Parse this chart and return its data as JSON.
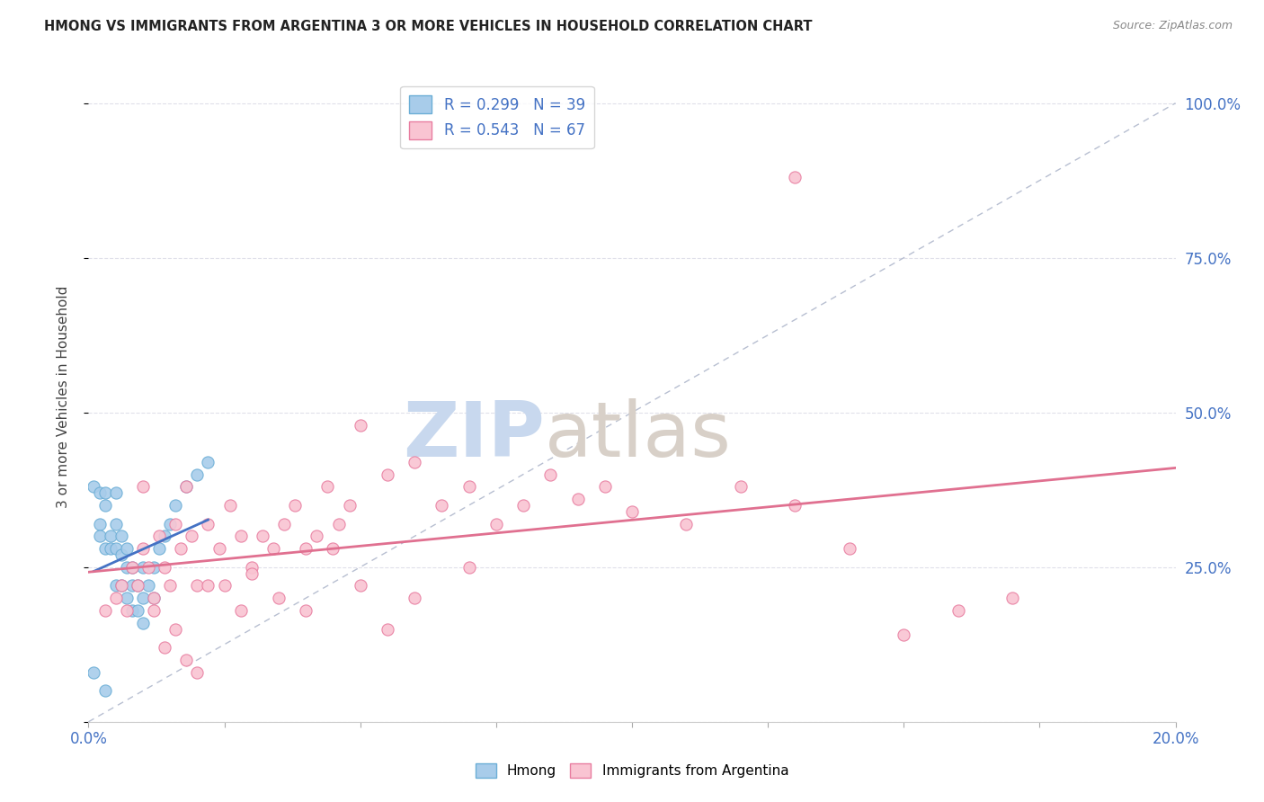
{
  "title": "HMONG VS IMMIGRANTS FROM ARGENTINA 3 OR MORE VEHICLES IN HOUSEHOLD CORRELATION CHART",
  "source": "Source: ZipAtlas.com",
  "ylabel": "3 or more Vehicles in Household",
  "xmin": 0.0,
  "xmax": 0.2,
  "ymin": 0.0,
  "ymax": 1.05,
  "right_yticks": [
    0.25,
    0.5,
    0.75,
    1.0
  ],
  "right_yticklabels": [
    "25.0%",
    "50.0%",
    "75.0%",
    "100.0%"
  ],
  "xticks": [
    0.0,
    0.025,
    0.05,
    0.075,
    0.1,
    0.125,
    0.15,
    0.175,
    0.2
  ],
  "xticklabels": [
    "0.0%",
    "",
    "",
    "",
    "",
    "",
    "",
    "",
    "20.0%"
  ],
  "hmong_color": "#A8CCEA",
  "hmong_edge_color": "#6BAED6",
  "argentina_color": "#F9C4D2",
  "argentina_edge_color": "#E87DA0",
  "trend_hmong_color": "#4472C4",
  "trend_argentina_color": "#E07090",
  "diagonal_color": "#B0B8CC",
  "R_hmong": 0.299,
  "N_hmong": 39,
  "R_argentina": 0.543,
  "N_argentina": 67,
  "watermark_zip": "ZIP",
  "watermark_atlas": "atlas",
  "background_color": "#FFFFFF",
  "grid_color": "#E0E0EA",
  "hmong_x": [
    0.001,
    0.002,
    0.002,
    0.002,
    0.003,
    0.003,
    0.003,
    0.004,
    0.004,
    0.005,
    0.005,
    0.005,
    0.005,
    0.006,
    0.006,
    0.006,
    0.007,
    0.007,
    0.007,
    0.008,
    0.008,
    0.008,
    0.009,
    0.009,
    0.01,
    0.01,
    0.01,
    0.011,
    0.012,
    0.012,
    0.013,
    0.014,
    0.015,
    0.016,
    0.018,
    0.02,
    0.022,
    0.001,
    0.003
  ],
  "hmong_y": [
    0.38,
    0.37,
    0.32,
    0.3,
    0.37,
    0.35,
    0.28,
    0.3,
    0.28,
    0.37,
    0.32,
    0.28,
    0.22,
    0.3,
    0.27,
    0.22,
    0.28,
    0.25,
    0.2,
    0.25,
    0.22,
    0.18,
    0.22,
    0.18,
    0.25,
    0.2,
    0.16,
    0.22,
    0.25,
    0.2,
    0.28,
    0.3,
    0.32,
    0.35,
    0.38,
    0.4,
    0.42,
    0.08,
    0.05
  ],
  "argentina_x": [
    0.003,
    0.005,
    0.006,
    0.007,
    0.008,
    0.009,
    0.01,
    0.011,
    0.012,
    0.013,
    0.014,
    0.015,
    0.016,
    0.017,
    0.018,
    0.019,
    0.02,
    0.022,
    0.024,
    0.026,
    0.028,
    0.03,
    0.032,
    0.034,
    0.036,
    0.038,
    0.04,
    0.042,
    0.044,
    0.046,
    0.048,
    0.05,
    0.055,
    0.06,
    0.065,
    0.07,
    0.075,
    0.08,
    0.085,
    0.09,
    0.095,
    0.1,
    0.11,
    0.12,
    0.13,
    0.14,
    0.15,
    0.16,
    0.17,
    0.01,
    0.012,
    0.014,
    0.016,
    0.018,
    0.02,
    0.022,
    0.025,
    0.028,
    0.03,
    0.035,
    0.04,
    0.045,
    0.05,
    0.055,
    0.06,
    0.07,
    0.13
  ],
  "argentina_y": [
    0.18,
    0.2,
    0.22,
    0.18,
    0.25,
    0.22,
    0.28,
    0.25,
    0.2,
    0.3,
    0.25,
    0.22,
    0.32,
    0.28,
    0.38,
    0.3,
    0.22,
    0.32,
    0.28,
    0.35,
    0.3,
    0.25,
    0.3,
    0.28,
    0.32,
    0.35,
    0.28,
    0.3,
    0.38,
    0.32,
    0.35,
    0.48,
    0.4,
    0.42,
    0.35,
    0.38,
    0.32,
    0.35,
    0.4,
    0.36,
    0.38,
    0.34,
    0.32,
    0.38,
    0.35,
    0.28,
    0.14,
    0.18,
    0.2,
    0.38,
    0.18,
    0.12,
    0.15,
    0.1,
    0.08,
    0.22,
    0.22,
    0.18,
    0.24,
    0.2,
    0.18,
    0.28,
    0.22,
    0.15,
    0.2,
    0.25,
    0.88
  ]
}
